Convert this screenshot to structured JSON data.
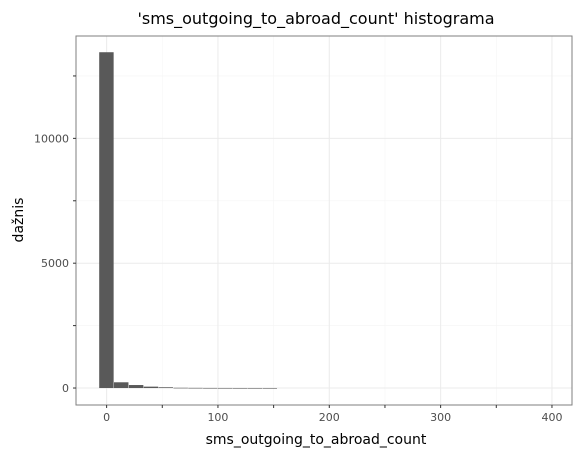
{
  "chart_data": {
    "type": "bar",
    "title": "'sms_outgoing_to_abroad_count' histograma",
    "xlabel": "sms_outgoing_to_abroad_count",
    "ylabel": "dažnis",
    "x_ticks": [
      0,
      100,
      200,
      300,
      400
    ],
    "y_ticks": [
      0,
      5000,
      10000
    ],
    "xlim": [
      -27.5,
      418
    ],
    "ylim": [
      -680,
      14100
    ],
    "bin_width": 13.33,
    "bins": [
      {
        "x": 0.0,
        "count": 13450
      },
      {
        "x": 13.3,
        "count": 230
      },
      {
        "x": 26.7,
        "count": 120
      },
      {
        "x": 40.0,
        "count": 55
      },
      {
        "x": 53.3,
        "count": 30
      },
      {
        "x": 66.7,
        "count": 10
      },
      {
        "x": 80.0,
        "count": 6
      },
      {
        "x": 93.3,
        "count": 3
      },
      {
        "x": 106.7,
        "count": 2
      },
      {
        "x": 120.0,
        "count": 1
      },
      {
        "x": 133.3,
        "count": 1
      },
      {
        "x": 146.7,
        "count": 1
      }
    ],
    "bar_color": "#595959",
    "grid": true,
    "background": "#ffffff",
    "gridline_color": "#ebebeb",
    "panel_border_color": "#7f7f7f"
  }
}
